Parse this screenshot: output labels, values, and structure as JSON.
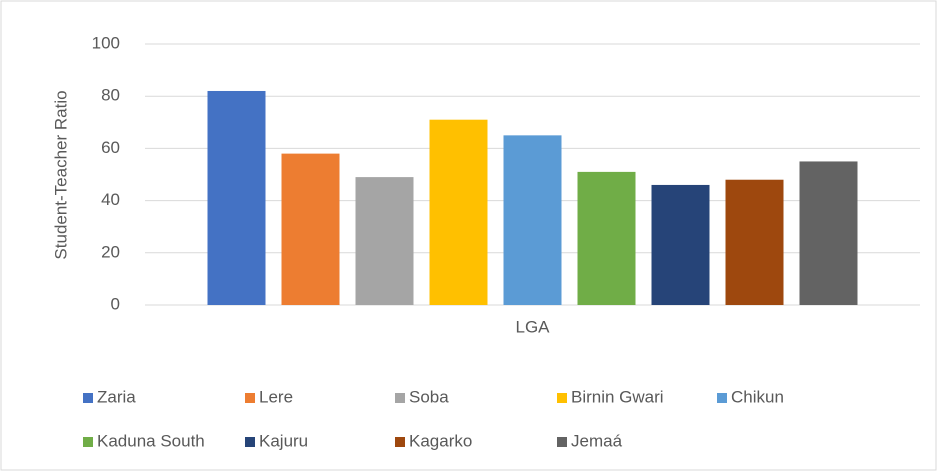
{
  "chart_data": {
    "type": "bar",
    "categories": [
      "LGA"
    ],
    "y_label": "Student-Teacher Ratio",
    "ylim": [
      0,
      100
    ],
    "yticks": [
      0,
      20,
      40,
      60,
      80,
      100
    ],
    "grid": true,
    "legend": "bottom",
    "series": [
      {
        "name": "Zaria",
        "color": "#4472c4",
        "values": [
          82
        ]
      },
      {
        "name": "Lere",
        "color": "#ed7d31",
        "values": [
          58
        ]
      },
      {
        "name": "Soba",
        "color": "#a5a5a5",
        "values": [
          49
        ]
      },
      {
        "name": "Birnin Gwari",
        "color": "#ffc000",
        "values": [
          71
        ]
      },
      {
        "name": "Chikun",
        "color": "#5b9bd5",
        "values": [
          65
        ]
      },
      {
        "name": "Kaduna South",
        "color": "#70ad47",
        "values": [
          51
        ]
      },
      {
        "name": "Kajuru",
        "color": "#264478",
        "values": [
          46
        ]
      },
      {
        "name": "Kagarko",
        "color": "#9e480e",
        "values": [
          48
        ]
      },
      {
        "name": "Jemaá",
        "color": "#636363",
        "values": [
          55
        ]
      }
    ]
  }
}
